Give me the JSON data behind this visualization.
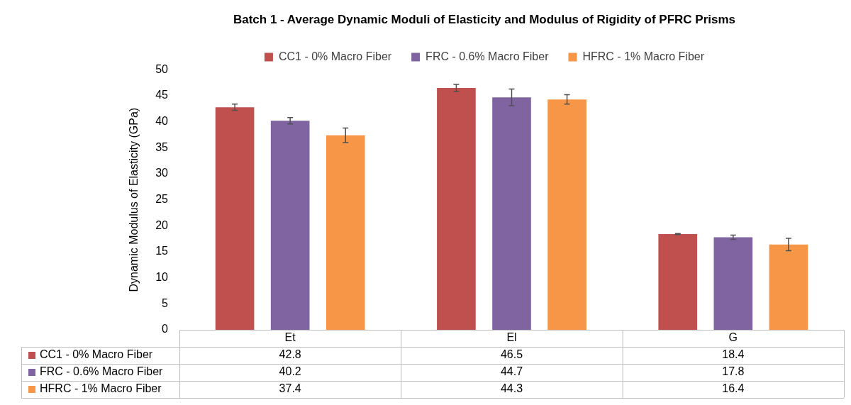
{
  "chart_data": {
    "type": "bar",
    "title": "Batch 1 - Average Dynamic Moduli of Elasticity and Modulus of Rigidity of PFRC Prisms",
    "ylabel": "Dynamic Modulus of Elasticity (GPa)",
    "categories": [
      "Et",
      "El",
      "G"
    ],
    "series": [
      {
        "name": "CC1 - 0% Macro Fiber",
        "color": "#c0504d",
        "values": [
          42.8,
          46.5,
          18.4
        ],
        "errors": [
          0.6,
          0.7,
          0.1
        ]
      },
      {
        "name": "FRC - 0.6% Macro Fiber",
        "color": "#8064a2",
        "values": [
          40.2,
          44.7,
          17.8
        ],
        "errors": [
          0.6,
          1.6,
          0.4
        ]
      },
      {
        "name": "HFRC - 1% Macro Fiber",
        "color": "#f79646",
        "values": [
          37.4,
          44.3,
          16.4
        ],
        "errors": [
          1.4,
          0.9,
          1.2
        ]
      }
    ],
    "ylim": [
      0,
      50
    ],
    "yticks": [
      0,
      5,
      10,
      15,
      20,
      25,
      30,
      35,
      40,
      45,
      50
    ],
    "grid": false,
    "legend": "top",
    "data_labels": true
  }
}
